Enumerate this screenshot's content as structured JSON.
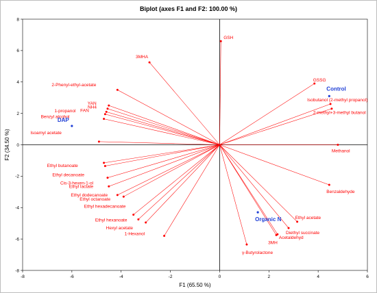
{
  "chart_data": {
    "type": "scatter",
    "title": "Biplot (axes F1 and F2: 100.00 %)",
    "xlabel": "F1 (65.50 %)",
    "ylabel": "F2 (34.50 %)",
    "xlim": [
      -8,
      6
    ],
    "ylim": [
      -8,
      8
    ],
    "xticks": [
      -8,
      -6,
      -4,
      -2,
      0,
      2,
      4,
      6
    ],
    "yticks": [
      -8,
      -6,
      -4,
      -2,
      0,
      2,
      4,
      6,
      8
    ],
    "grid": false,
    "colors": {
      "variables": "#ff0000",
      "observations": "#1f3fd6",
      "axes": "#000000"
    },
    "observations": [
      {
        "label": "DAP",
        "x": -6.0,
        "y": 1.2
      },
      {
        "label": "Control",
        "x": 4.45,
        "y": 3.1
      },
      {
        "label": "Organic N",
        "x": 1.55,
        "y": -4.3
      }
    ],
    "variables": [
      {
        "label": "GSH",
        "x": 0.05,
        "y": 6.6
      },
      {
        "label": "3MHA",
        "x": -2.85,
        "y": 5.25
      },
      {
        "label": "2-Phenyl-ethyl-acetate",
        "x": -4.15,
        "y": 3.5
      },
      {
        "label": "YAN",
        "x": -4.5,
        "y": 2.5
      },
      {
        "label": "NH4",
        "x": -4.55,
        "y": 2.3
      },
      {
        "label": "FAN",
        "x": -4.6,
        "y": 2.1
      },
      {
        "label": "1-propanol",
        "x": -4.65,
        "y": 1.95
      },
      {
        "label": "Benzyl alcohol",
        "x": -4.7,
        "y": 1.65
      },
      {
        "label": "Isoamyl acetate",
        "x": -4.9,
        "y": 0.2
      },
      {
        "label": "GSSG",
        "x": 3.85,
        "y": 3.9
      },
      {
        "label": "Isobutanol (2-methyl propanol)",
        "x": 4.5,
        "y": 2.6
      },
      {
        "label": "2-methyl+3-methyl butanol",
        "x": 4.55,
        "y": 2.3
      },
      {
        "label": "Methanol",
        "x": 4.8,
        "y": 0.0
      },
      {
        "label": "Ethyl butanoate",
        "x": -4.7,
        "y": -1.15
      },
      {
        "label": "Ethyl decanoate",
        "x": -4.65,
        "y": -1.35
      },
      {
        "label": "Cis-3-hexen-1-ol",
        "x": -4.55,
        "y": -2.1
      },
      {
        "label": "Ethyl lactate",
        "x": -4.5,
        "y": -2.65
      },
      {
        "label": "Ethyl dodecanoate",
        "x": -4.15,
        "y": -3.2
      },
      {
        "label": "Ethyl octanoate",
        "x": -3.9,
        "y": -3.3
      },
      {
        "label": "Ethyl hexadecanoate",
        "x": -3.5,
        "y": -4.45
      },
      {
        "label": "Ethyl hexanoate",
        "x": -3.3,
        "y": -4.75
      },
      {
        "label": "Hexyl acetate",
        "x": -3.0,
        "y": -4.95
      },
      {
        "label": "1-Hexanol",
        "x": -2.25,
        "y": -5.8
      },
      {
        "label": "Benzaldehyde",
        "x": 4.45,
        "y": -2.55
      },
      {
        "label": "Ethyl acetate",
        "x": 3.15,
        "y": -4.9
      },
      {
        "label": "Diethyl succinate",
        "x": 2.8,
        "y": -5.3
      },
      {
        "label": "Acetaldehyd",
        "x": 2.35,
        "y": -5.7
      },
      {
        "label": "3MH",
        "x": 2.3,
        "y": -5.75
      },
      {
        "label": "γ-Butyrolactone",
        "x": 1.1,
        "y": -6.35
      }
    ]
  }
}
